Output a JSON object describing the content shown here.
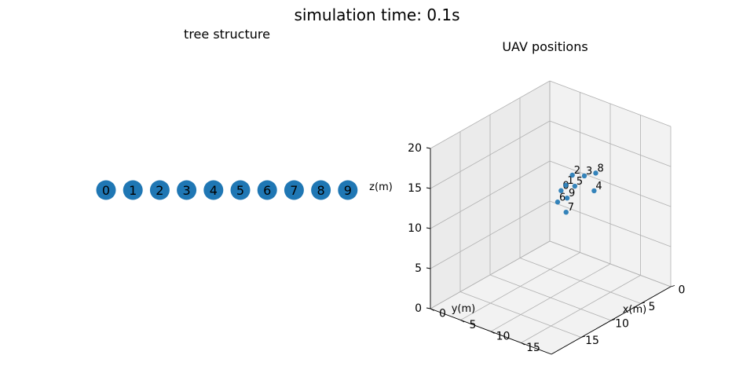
{
  "figure": {
    "title": "simulation time: 0.1s"
  },
  "tree_panel": {
    "title": "tree structure"
  },
  "uav_panel": {
    "title": "UAV positions",
    "xlabel": "x(m)",
    "ylabel": "y(m)",
    "zlabel": "z(m)"
  },
  "chart_data": [
    {
      "type": "graph",
      "title": "tree structure",
      "nodes": [
        "0",
        "1",
        "2",
        "3",
        "4",
        "5",
        "6",
        "7",
        "8",
        "9"
      ],
      "edges": [],
      "node_color": "#1f77b4"
    },
    {
      "type": "scatter3d",
      "title": "UAV positions",
      "xlabel": "x(m)",
      "ylabel": "y(m)",
      "zlabel": "z(m)",
      "xlim": [
        0,
        20
      ],
      "ylim": [
        0,
        20
      ],
      "zlim": [
        0,
        20
      ],
      "xticks": [
        0,
        5,
        10,
        15
      ],
      "yticks": [
        0,
        5,
        10,
        15
      ],
      "zticks": [
        0,
        5,
        10,
        15,
        20
      ],
      "grid": true,
      "point_color": "#1f77b4",
      "points": [
        {
          "label": "0",
          "x": 6.6,
          "y": 4.8,
          "z": 10.2
        },
        {
          "label": "1",
          "x": 6.4,
          "y": 3.8,
          "z": 10.4
        },
        {
          "label": "2",
          "x": 5.7,
          "y": 2.0,
          "z": 10.7
        },
        {
          "label": "3",
          "x": 6.6,
          "y": 0.9,
          "z": 10.4
        },
        {
          "label": "4",
          "x": 9.2,
          "y": 1.9,
          "z": 9.7
        },
        {
          "label": "5",
          "x": 6.9,
          "y": 2.8,
          "z": 10.0
        },
        {
          "label": "6",
          "x": 8.4,
          "y": 7.2,
          "z": 10.3
        },
        {
          "label": "7",
          "x": 9.9,
          "y": 7.3,
          "z": 9.5
        },
        {
          "label": "8",
          "x": 7.1,
          "y": -0.5,
          "z": 10.3
        },
        {
          "label": "9",
          "x": 7.8,
          "y": 5.0,
          "z": 9.7
        }
      ]
    }
  ]
}
